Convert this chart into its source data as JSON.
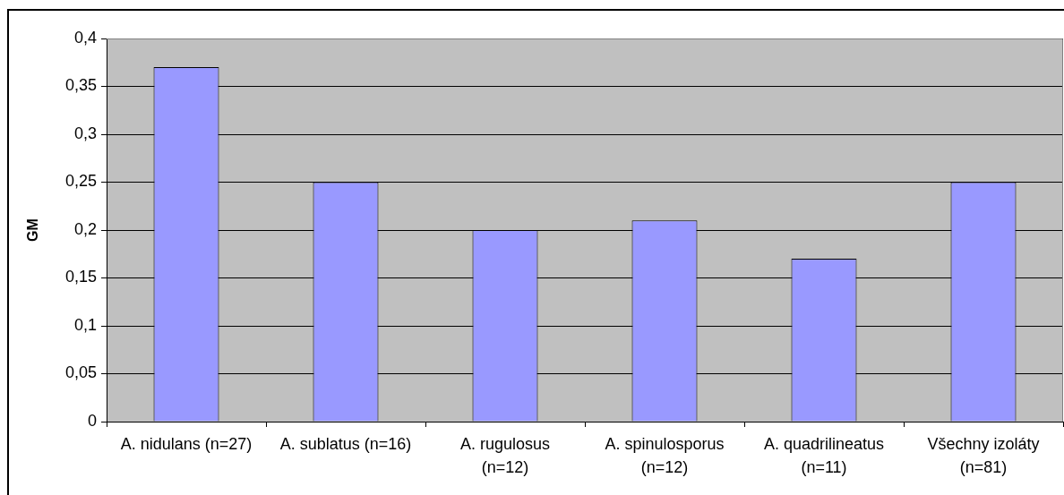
{
  "chart_data": {
    "type": "bar",
    "categories": [
      "A. nidulans (n=27)",
      "A. sublatus (n=16)",
      "A. rugulosus\n(n=12)",
      "A. spinulosporus\n(n=12)",
      "A. quadrilineatus\n(n=11)",
      "Všechny izoláty\n(n=81)"
    ],
    "values": [
      0.37,
      0.25,
      0.2,
      0.21,
      0.17,
      0.25
    ],
    "color": "#9999ff",
    "ylabel": "GM",
    "ylim": [
      0,
      0.4
    ],
    "yticks": [
      0,
      {
        "value": 0.05,
        "label": "0,05"
      },
      {
        "value": 0.1,
        "label": "0,1"
      },
      {
        "value": 0.15,
        "label": "0,15"
      },
      {
        "value": 0.2,
        "label": "0,2"
      },
      {
        "value": 0.25,
        "label": "0,25"
      },
      {
        "value": 0.3,
        "label": "0,3"
      },
      {
        "value": 0.35,
        "label": "0,35"
      },
      {
        "value": 0.4,
        "label": "0,4"
      }
    ],
    "grid": "y"
  }
}
